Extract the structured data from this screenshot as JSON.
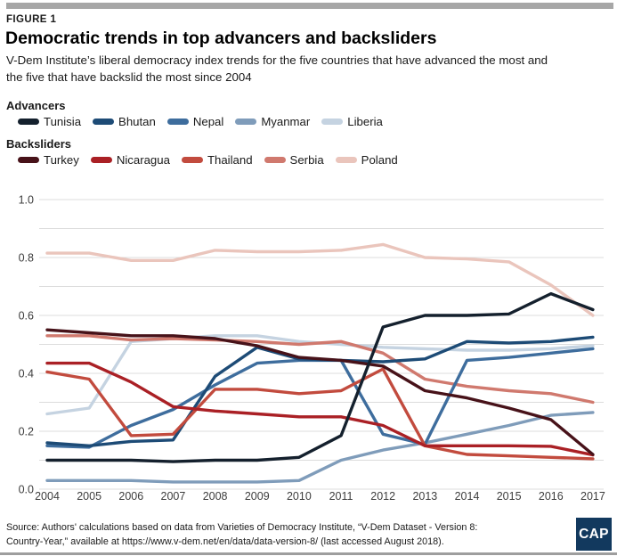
{
  "figure_label": "FIGURE 1",
  "title": "Democratic trends in top advancers and backsliders",
  "subtitle": "V-Dem Institute’s liberal democracy index trends for the five countries that have advanced the most and the five that have backslid the most since 2004",
  "legend": {
    "advancers_label": "Advancers",
    "backsliders_label": "Backsliders",
    "advancers": [
      {
        "name": "Tunisia",
        "color": "#14202d"
      },
      {
        "name": "Bhutan",
        "color": "#1d4b76"
      },
      {
        "name": "Nepal",
        "color": "#3e6d9d"
      },
      {
        "name": "Myanmar",
        "color": "#7f9cba"
      },
      {
        "name": "Liberia",
        "color": "#c5d3e1"
      }
    ],
    "backsliders": [
      {
        "name": "Turkey",
        "color": "#471219"
      },
      {
        "name": "Nicaragua",
        "color": "#aa2025"
      },
      {
        "name": "Thailand",
        "color": "#c24b3e"
      },
      {
        "name": "Serbia",
        "color": "#d0796e"
      },
      {
        "name": "Poland",
        "color": "#eac5bc"
      }
    ]
  },
  "chart_data": {
    "type": "line",
    "x": [
      2004,
      2005,
      2006,
      2007,
      2008,
      2009,
      2010,
      2011,
      2012,
      2013,
      2014,
      2015,
      2016,
      2017
    ],
    "ylim": [
      0.0,
      1.0
    ],
    "yticks": [
      "1.0",
      "0.8",
      "0.6",
      "0.4",
      "0.2",
      "0.0"
    ],
    "ytick_values": [
      1.0,
      0.8,
      0.6,
      0.4,
      0.2,
      0.0
    ],
    "grid": "horizontal lines every 0.1",
    "legend_position": "above chart, two labeled rows",
    "series": [
      {
        "name": "Poland",
        "group": "backslider",
        "color": "#eac5bc",
        "values": [
          0.815,
          0.815,
          0.79,
          0.79,
          0.825,
          0.82,
          0.82,
          0.825,
          0.845,
          0.8,
          0.795,
          0.785,
          0.705,
          0.6
        ]
      },
      {
        "name": "Liberia",
        "group": "advancer",
        "color": "#c5d3e1",
        "values": [
          0.26,
          0.28,
          0.51,
          0.52,
          0.53,
          0.53,
          0.51,
          0.5,
          0.49,
          0.485,
          0.48,
          0.48,
          0.485,
          0.495
        ]
      },
      {
        "name": "Serbia",
        "group": "backslider",
        "color": "#d0796e",
        "values": [
          0.53,
          0.53,
          0.515,
          0.52,
          0.515,
          0.51,
          0.5,
          0.51,
          0.47,
          0.38,
          0.355,
          0.34,
          0.33,
          0.3
        ]
      },
      {
        "name": "Myanmar",
        "group": "advancer",
        "color": "#7f9cba",
        "values": [
          0.03,
          0.03,
          0.03,
          0.025,
          0.025,
          0.025,
          0.03,
          0.1,
          0.135,
          0.16,
          0.19,
          0.22,
          0.255,
          0.265
        ]
      },
      {
        "name": "Nepal",
        "group": "advancer",
        "color": "#3e6d9d",
        "values": [
          0.15,
          0.145,
          0.22,
          0.275,
          0.36,
          0.435,
          0.445,
          0.445,
          0.19,
          0.155,
          0.445,
          0.455,
          0.47,
          0.485
        ]
      },
      {
        "name": "Bhutan",
        "group": "advancer",
        "color": "#1d4b76",
        "values": [
          0.16,
          0.15,
          0.165,
          0.17,
          0.39,
          0.49,
          0.45,
          0.445,
          0.44,
          0.45,
          0.51,
          0.505,
          0.51,
          0.525
        ]
      },
      {
        "name": "Thailand",
        "group": "backslider",
        "color": "#c24b3e",
        "values": [
          0.405,
          0.38,
          0.185,
          0.19,
          0.345,
          0.345,
          0.33,
          0.34,
          0.415,
          0.15,
          0.12,
          0.115,
          0.11,
          0.105
        ]
      },
      {
        "name": "Nicaragua",
        "group": "backslider",
        "color": "#aa2025",
        "values": [
          0.435,
          0.435,
          0.37,
          0.285,
          0.27,
          0.26,
          0.25,
          0.25,
          0.22,
          0.15,
          0.15,
          0.15,
          0.148,
          0.118
        ]
      },
      {
        "name": "Turkey",
        "group": "backslider",
        "color": "#471219",
        "values": [
          0.55,
          0.54,
          0.53,
          0.53,
          0.52,
          0.495,
          0.455,
          0.445,
          0.425,
          0.34,
          0.315,
          0.28,
          0.24,
          0.12
        ]
      },
      {
        "name": "Tunisia",
        "group": "advancer",
        "color": "#14202d",
        "values": [
          0.1,
          0.1,
          0.1,
          0.095,
          0.1,
          0.1,
          0.11,
          0.185,
          0.56,
          0.6,
          0.6,
          0.605,
          0.675,
          0.62
        ]
      }
    ]
  },
  "source": "Source: Authors' calculations based on data from Varieties of Democracy Institute, “V-Dem Dataset - Version 8: Country-Year,” available at https://www.v-dem.net/en/data/data-version-8/ (last accessed August 2018).",
  "logo_text": "CAP"
}
